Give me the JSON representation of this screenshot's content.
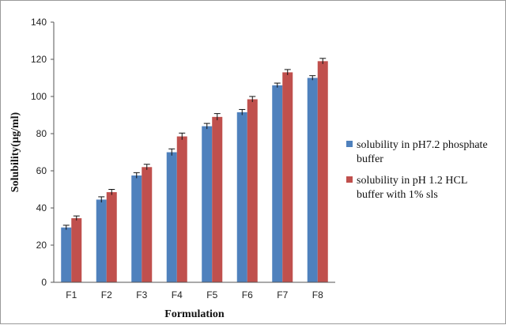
{
  "chart_data": {
    "type": "bar",
    "categories": [
      "F1",
      "F2",
      "F3",
      "F4",
      "F5",
      "F6",
      "F7",
      "F8"
    ],
    "series": [
      {
        "name": "solubility in pH7.2 phosphate buffer",
        "legend_lines": [
          "solubility in pH7.2 phosphate",
          "buffer"
        ],
        "color": "#4f81bd",
        "values": [
          29.5,
          44.5,
          57.5,
          70,
          84,
          91.5,
          106,
          110
        ],
        "errors": [
          1.2,
          1.5,
          1.5,
          1.8,
          1.5,
          1.5,
          1.2,
          1.2
        ]
      },
      {
        "name": "solubility in pH 1.2 HCL buffer with 1% sls",
        "legend_lines": [
          "solubility in pH 1.2 HCL",
          "buffer with 1% sls"
        ],
        "color": "#c0504d",
        "values": [
          34.5,
          48.5,
          62,
          78.5,
          89,
          98.5,
          113,
          119
        ],
        "errors": [
          1.2,
          1.5,
          1.5,
          1.8,
          1.8,
          1.5,
          1.5,
          1.5
        ]
      }
    ],
    "xlabel": "Formulation",
    "ylabel": "Solubility(µg/ml)",
    "ylim": [
      0,
      140
    ],
    "yticks": [
      "0",
      "20",
      "40",
      "60",
      "80",
      "100",
      "120",
      "140"
    ],
    "grid": false,
    "legend_position": "right"
  }
}
